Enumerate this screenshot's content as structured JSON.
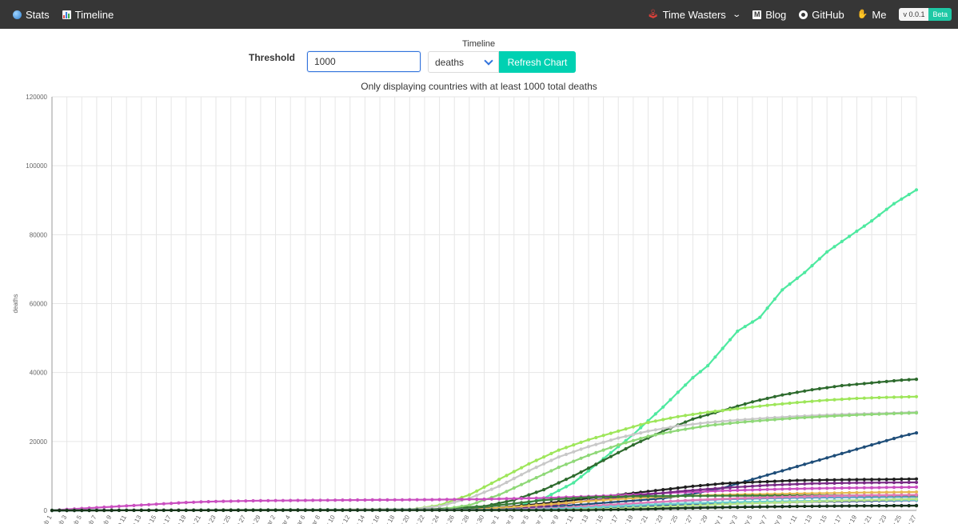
{
  "navbar": {
    "stats_label": "Stats",
    "timeline_label": "Timeline",
    "time_wasters_label": "Time Wasters",
    "blog_label": "Blog",
    "github_label": "GitHub",
    "me_label": "Me",
    "version": "v 0.0.1",
    "beta": "Beta",
    "icons": {
      "stats": "globe-icon",
      "timeline": "bar-chart-icon",
      "time_wasters": "joystick-icon",
      "blog": "medium-icon",
      "github": "github-icon",
      "me": "waving-hand-icon"
    }
  },
  "controls": {
    "threshold_label": "Threshold",
    "threshold_value": "1000",
    "timeline_label": "Timeline",
    "metric_value": "deaths",
    "refresh_label": "Refresh Chart"
  },
  "subtitle": "Only displaying countries with at least 1000 total deaths",
  "chart_data": {
    "type": "line",
    "ylabel": "deaths",
    "ylim": [
      0,
      120000
    ],
    "yticks": [
      "0",
      "20000",
      "40000",
      "60000",
      "80000",
      "100000",
      "120000"
    ],
    "x": [
      "Feb 1",
      "Feb 2",
      "Feb 3",
      "Feb 4",
      "Feb 5",
      "Feb 6",
      "Feb 7",
      "Feb 8",
      "Feb 9",
      "Feb 10",
      "Feb 11",
      "Feb 12",
      "Feb 13",
      "Feb 14",
      "Feb 15",
      "Feb 16",
      "Feb 17",
      "Feb 18",
      "Feb 19",
      "Feb 20",
      "Feb 21",
      "Feb 22",
      "Feb 23",
      "Feb 24",
      "Feb 25",
      "Feb 26",
      "Feb 27",
      "Feb 28",
      "Feb 29",
      "Mar 1",
      "Mar 2",
      "Mar 3",
      "Mar 4",
      "Mar 5",
      "Mar 6",
      "Mar 7",
      "Mar 8",
      "Mar 9",
      "Mar 10",
      "Mar 11",
      "Mar 12",
      "Mar 13",
      "Mar 14",
      "Mar 15",
      "Mar 16",
      "Mar 17",
      "Mar 18",
      "Mar 19",
      "Mar 20",
      "Mar 21",
      "Mar 22",
      "Mar 23",
      "Mar 24",
      "Mar 25",
      "Mar 26",
      "Mar 27",
      "Mar 28",
      "Mar 29",
      "Mar 30",
      "Mar 31",
      "Apr 1",
      "Apr 2",
      "Apr 3",
      "Apr 4",
      "Apr 5",
      "Apr 6",
      "Apr 7",
      "Apr 8",
      "Apr 9",
      "Apr 10",
      "Apr 11",
      "Apr 12",
      "Apr 13",
      "Apr 14",
      "Apr 15",
      "Apr 16",
      "Apr 17",
      "Apr 18",
      "Apr 19",
      "Apr 20",
      "Apr 21",
      "Apr 22",
      "Apr 23",
      "Apr 24",
      "Apr 25",
      "Apr 26",
      "Apr 27",
      "Apr 28",
      "Apr 29",
      "Apr 30",
      "May 1",
      "May 2",
      "May 3",
      "May 4",
      "May 5",
      "May 6",
      "May 7",
      "May 8",
      "May 9",
      "May 10",
      "May 11",
      "May 12",
      "May 13",
      "May 14",
      "May 15",
      "May 16",
      "May 17",
      "May 18",
      "May 19",
      "May 20",
      "May 21",
      "May 22",
      "May 23",
      "May 24",
      "May 25",
      "May 26",
      "May 27"
    ],
    "series": [
      {
        "color": "#4ee9a0",
        "keypoints": [
          [
            0,
            0
          ],
          [
            56,
            200
          ],
          [
            62,
            1000
          ],
          [
            66,
            3500
          ],
          [
            70,
            8000
          ],
          [
            74,
            15000
          ],
          [
            78,
            22000
          ],
          [
            82,
            30000
          ],
          [
            86,
            38500
          ],
          [
            88,
            42000
          ],
          [
            92,
            52000
          ],
          [
            95,
            56000
          ],
          [
            98,
            64000
          ],
          [
            101,
            69000
          ],
          [
            104,
            75000
          ],
          [
            107,
            79500
          ],
          [
            110,
            84000
          ],
          [
            113,
            89000
          ],
          [
            116,
            93000
          ],
          [
            119,
            97500
          ],
          [
            121,
            99000
          ],
          [
            122,
            100500
          ]
        ]
      },
      {
        "color": "#2e6b2e",
        "keypoints": [
          [
            0,
            0
          ],
          [
            50,
            200
          ],
          [
            58,
            1200
          ],
          [
            62,
            3000
          ],
          [
            66,
            6000
          ],
          [
            70,
            10000
          ],
          [
            74,
            14500
          ],
          [
            78,
            19000
          ],
          [
            82,
            23000
          ],
          [
            86,
            26500
          ],
          [
            90,
            29000
          ],
          [
            94,
            31500
          ],
          [
            98,
            33500
          ],
          [
            102,
            35000
          ],
          [
            106,
            36200
          ],
          [
            110,
            37000
          ],
          [
            114,
            37800
          ],
          [
            118,
            38300
          ],
          [
            122,
            37500
          ]
        ]
      },
      {
        "color": "#9ee65a",
        "keypoints": [
          [
            0,
            0
          ],
          [
            48,
            200
          ],
          [
            52,
            1500
          ],
          [
            56,
            4500
          ],
          [
            60,
            9000
          ],
          [
            64,
            13500
          ],
          [
            68,
            17500
          ],
          [
            72,
            20500
          ],
          [
            76,
            23000
          ],
          [
            80,
            25500
          ],
          [
            84,
            27200
          ],
          [
            88,
            28500
          ],
          [
            92,
            29500
          ],
          [
            96,
            30500
          ],
          [
            100,
            31300
          ],
          [
            104,
            32000
          ],
          [
            108,
            32500
          ],
          [
            112,
            32800
          ],
          [
            116,
            33000
          ],
          [
            122,
            33000
          ]
        ]
      },
      {
        "color": "#c8c8c8",
        "keypoints": [
          [
            0,
            0
          ],
          [
            48,
            200
          ],
          [
            52,
            1200
          ],
          [
            56,
            3500
          ],
          [
            60,
            7000
          ],
          [
            64,
            11500
          ],
          [
            68,
            15500
          ],
          [
            72,
            18500
          ],
          [
            76,
            21000
          ],
          [
            80,
            23000
          ],
          [
            84,
            24500
          ],
          [
            88,
            25500
          ],
          [
            92,
            26200
          ],
          [
            96,
            26800
          ],
          [
            100,
            27300
          ],
          [
            104,
            27700
          ],
          [
            108,
            28000
          ],
          [
            112,
            28200
          ],
          [
            116,
            28500
          ],
          [
            118,
            26800
          ],
          [
            122,
            27000
          ]
        ]
      },
      {
        "color": "#8fd878",
        "keypoints": [
          [
            0,
            0
          ],
          [
            52,
            200
          ],
          [
            56,
            1500
          ],
          [
            60,
            4500
          ],
          [
            64,
            8500
          ],
          [
            68,
            12500
          ],
          [
            72,
            16000
          ],
          [
            76,
            19000
          ],
          [
            80,
            21500
          ],
          [
            84,
            23200
          ],
          [
            88,
            24600
          ],
          [
            92,
            25500
          ],
          [
            96,
            26200
          ],
          [
            100,
            26800
          ],
          [
            104,
            27300
          ],
          [
            108,
            27700
          ],
          [
            112,
            28000
          ],
          [
            116,
            28300
          ],
          [
            122,
            28500
          ]
        ]
      },
      {
        "color": "#1f4e79",
        "keypoints": [
          [
            0,
            0
          ],
          [
            58,
            200
          ],
          [
            64,
            700
          ],
          [
            70,
            1500
          ],
          [
            76,
            2500
          ],
          [
            82,
            3500
          ],
          [
            86,
            4800
          ],
          [
            90,
            6500
          ],
          [
            94,
            9000
          ],
          [
            98,
            11500
          ],
          [
            102,
            14000
          ],
          [
            106,
            16500
          ],
          [
            110,
            19000
          ],
          [
            114,
            21500
          ],
          [
            118,
            23500
          ],
          [
            122,
            25500
          ]
        ]
      },
      {
        "color": "#1f1f1f",
        "keypoints": [
          [
            0,
            0
          ],
          [
            54,
            200
          ],
          [
            60,
            800
          ],
          [
            66,
            2000
          ],
          [
            72,
            3500
          ],
          [
            78,
            5000
          ],
          [
            82,
            6000
          ],
          [
            86,
            7000
          ],
          [
            90,
            7800
          ],
          [
            94,
            8200
          ],
          [
            100,
            8700
          ],
          [
            106,
            8900
          ],
          [
            112,
            9000
          ],
          [
            118,
            9200
          ],
          [
            122,
            9300
          ]
        ]
      },
      {
        "color": "#ca4fc0",
        "keypoints": [
          [
            0,
            0
          ],
          [
            2,
            300
          ],
          [
            6,
            800
          ],
          [
            10,
            1300
          ],
          [
            14,
            1800
          ],
          [
            18,
            2300
          ],
          [
            22,
            2600
          ],
          [
            26,
            2750
          ],
          [
            30,
            2850
          ],
          [
            40,
            3000
          ],
          [
            50,
            3100
          ],
          [
            58,
            3250
          ],
          [
            66,
            3600
          ],
          [
            74,
            4200
          ],
          [
            82,
            5000
          ],
          [
            90,
            5700
          ],
          [
            98,
            6200
          ],
          [
            106,
            6500
          ],
          [
            114,
            6700
          ],
          [
            122,
            6900
          ]
        ]
      },
      {
        "color": "#7a2b86",
        "keypoints": [
          [
            0,
            0
          ],
          [
            60,
            200
          ],
          [
            66,
            1200
          ],
          [
            72,
            2800
          ],
          [
            78,
            4200
          ],
          [
            84,
            5500
          ],
          [
            90,
            6500
          ],
          [
            96,
            7300
          ],
          [
            102,
            7800
          ],
          [
            108,
            8000
          ],
          [
            114,
            8100
          ],
          [
            122,
            8200
          ]
        ]
      },
      {
        "color": "#e6b84e",
        "keypoints": [
          [
            0,
            0
          ],
          [
            56,
            200
          ],
          [
            62,
            1000
          ],
          [
            68,
            2000
          ],
          [
            74,
            3000
          ],
          [
            80,
            3800
          ],
          [
            86,
            4300
          ],
          [
            92,
            4600
          ],
          [
            98,
            4800
          ],
          [
            104,
            5000
          ],
          [
            110,
            5200
          ],
          [
            116,
            5350
          ],
          [
            122,
            5500
          ]
        ]
      },
      {
        "color": "#5fa0c8",
        "keypoints": [
          [
            0,
            0
          ],
          [
            60,
            200
          ],
          [
            66,
            600
          ],
          [
            72,
            1200
          ],
          [
            78,
            2000
          ],
          [
            84,
            2700
          ],
          [
            90,
            3200
          ],
          [
            96,
            3500
          ],
          [
            102,
            3700
          ],
          [
            108,
            3800
          ],
          [
            114,
            3900
          ],
          [
            122,
            4000
          ]
        ]
      },
      {
        "color": "#3a7d3a",
        "keypoints": [
          [
            0,
            0
          ],
          [
            54,
            300
          ],
          [
            60,
            1500
          ],
          [
            66,
            3000
          ],
          [
            72,
            3800
          ],
          [
            78,
            4100
          ],
          [
            84,
            4200
          ],
          [
            90,
            4250
          ],
          [
            100,
            4300
          ],
          [
            110,
            4350
          ],
          [
            122,
            4400
          ]
        ]
      },
      {
        "color": "#e07ab8",
        "keypoints": [
          [
            0,
            0
          ],
          [
            62,
            200
          ],
          [
            68,
            700
          ],
          [
            74,
            1500
          ],
          [
            80,
            2300
          ],
          [
            86,
            3000
          ],
          [
            92,
            3500
          ],
          [
            98,
            3900
          ],
          [
            104,
            4200
          ],
          [
            110,
            4400
          ],
          [
            116,
            4500
          ],
          [
            122,
            4600
          ]
        ]
      },
      {
        "color": "#2b3a8f",
        "keypoints": [
          [
            0,
            0
          ],
          [
            66,
            150
          ],
          [
            72,
            500
          ],
          [
            78,
            1000
          ],
          [
            84,
            1500
          ],
          [
            90,
            1900
          ],
          [
            96,
            2200
          ],
          [
            102,
            2500
          ],
          [
            108,
            2700
          ],
          [
            114,
            2900
          ],
          [
            122,
            3100
          ]
        ]
      },
      {
        "color": "#0c1f5a",
        "keypoints": [
          [
            0,
            0
          ],
          [
            70,
            100
          ],
          [
            76,
            350
          ],
          [
            82,
            600
          ],
          [
            88,
            850
          ],
          [
            94,
            1050
          ],
          [
            100,
            1200
          ],
          [
            106,
            1300
          ],
          [
            112,
            1380
          ],
          [
            118,
            1420
          ],
          [
            122,
            1450
          ]
        ]
      },
      {
        "color": "#6ccfcf",
        "keypoints": [
          [
            0,
            0
          ],
          [
            64,
            150
          ],
          [
            70,
            600
          ],
          [
            76,
            1200
          ],
          [
            82,
            1800
          ],
          [
            88,
            2200
          ],
          [
            94,
            2500
          ],
          [
            100,
            2700
          ],
          [
            106,
            2900
          ],
          [
            112,
            3000
          ],
          [
            122,
            3100
          ]
        ]
      },
      {
        "color": "#b5e38a",
        "keypoints": [
          [
            0,
            0
          ],
          [
            68,
            100
          ],
          [
            74,
            400
          ],
          [
            80,
            900
          ],
          [
            86,
            1400
          ],
          [
            92,
            1900
          ],
          [
            98,
            2300
          ],
          [
            104,
            2700
          ],
          [
            110,
            3000
          ],
          [
            116,
            3300
          ],
          [
            122,
            3500
          ]
        ]
      },
      {
        "color": "#17351a",
        "keypoints": [
          [
            0,
            0
          ],
          [
            72,
            100
          ],
          [
            78,
            300
          ],
          [
            84,
            600
          ],
          [
            90,
            850
          ],
          [
            96,
            1050
          ],
          [
            102,
            1200
          ],
          [
            108,
            1300
          ],
          [
            114,
            1350
          ],
          [
            122,
            1400
          ]
        ]
      }
    ]
  }
}
